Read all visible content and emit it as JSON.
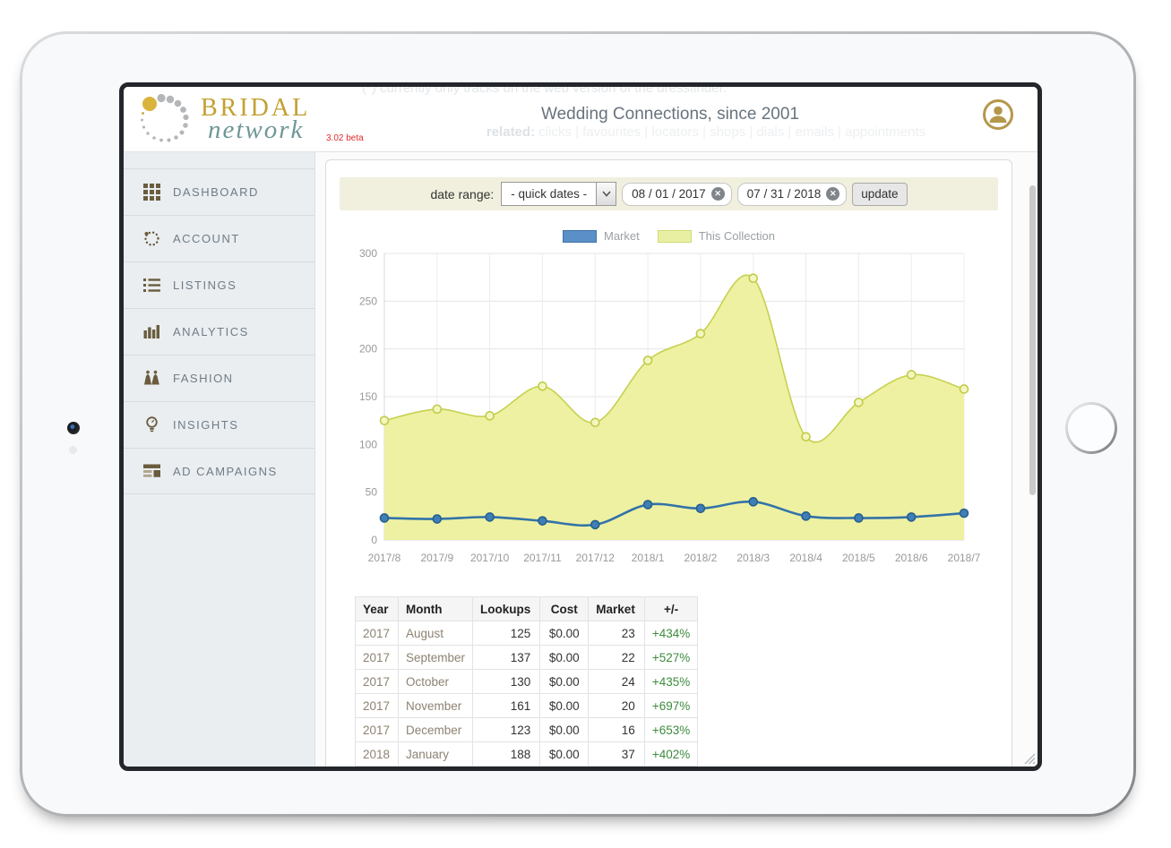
{
  "header": {
    "faint_note": "(*) currently only tracks on the web version of the dressfinder.",
    "logo": {
      "line1": "BRIDAL",
      "line2": "network",
      "version": "3.02 beta"
    },
    "title": "Wedding Connections, since 2001",
    "related": {
      "label": "related:",
      "items": "clicks | favourites | locators | shops | dials | emails | appointments"
    }
  },
  "sidebar": {
    "items": [
      {
        "label": "DASHBOARD",
        "icon": "grid-icon"
      },
      {
        "label": "ACCOUNT",
        "icon": "dotted-circle-icon"
      },
      {
        "label": "LISTINGS",
        "icon": "list-icon"
      },
      {
        "label": "ANALYTICS",
        "icon": "bar-chart-icon"
      },
      {
        "label": "FASHION",
        "icon": "dresses-icon"
      },
      {
        "label": "INSIGHTS",
        "icon": "lightbulb-icon"
      },
      {
        "label": "AD CAMPAIGNS",
        "icon": "ad-blocks-icon"
      }
    ]
  },
  "toolbar": {
    "date_range_label": "date range:",
    "quick_dates_value": "- quick dates -",
    "start_date": "08 / 01 / 2017",
    "end_date": "07 / 31 / 2018",
    "update_label": "update"
  },
  "chart_data": {
    "type": "line",
    "categories": [
      "2017/8",
      "2017/9",
      "2017/10",
      "2017/11",
      "2017/12",
      "2018/1",
      "2018/2",
      "2018/3",
      "2018/4",
      "2018/5",
      "2018/6",
      "2018/7"
    ],
    "series": [
      {
        "name": "Market",
        "type": "line",
        "color": "#3273a8",
        "marker_fill": "#3f7fb5",
        "marker_stroke": "#27608f",
        "values": [
          23,
          22,
          24,
          20,
          16,
          37,
          33,
          40,
          25,
          23,
          24,
          28
        ]
      },
      {
        "name": "This Collection",
        "type": "area",
        "color": "#c5d14f",
        "fill": "#eef1a2",
        "marker_fill": "#f4f6c0",
        "marker_stroke": "#c0cc49",
        "values": [
          125,
          137,
          130,
          161,
          123,
          188,
          216,
          274,
          108,
          144,
          173,
          158
        ]
      }
    ],
    "ylim": [
      0,
      300
    ],
    "ytick_step": 50,
    "grid": true,
    "legend_position": "top-center"
  },
  "table": {
    "columns": [
      "Year",
      "Month",
      "Lookups",
      "Cost",
      "Market",
      "+/-"
    ],
    "rows": [
      [
        "2017",
        "August",
        "125",
        "$0.00",
        "23",
        "+434%"
      ],
      [
        "2017",
        "September",
        "137",
        "$0.00",
        "22",
        "+527%"
      ],
      [
        "2017",
        "October",
        "130",
        "$0.00",
        "24",
        "+435%"
      ],
      [
        "2017",
        "November",
        "161",
        "$0.00",
        "20",
        "+697%"
      ],
      [
        "2017",
        "December",
        "123",
        "$0.00",
        "16",
        "+653%"
      ],
      [
        "2018",
        "January",
        "188",
        "$0.00",
        "37",
        "+402%"
      ]
    ]
  },
  "colors": {
    "brand_gold": "#c3a032",
    "brand_teal": "#6f9797",
    "beta_red": "#e02b2b",
    "sidebar_icon": "#6a5c3e",
    "market_blue": "#3273a8",
    "collection_fill": "#eef1a2",
    "collection_line": "#c5d14f",
    "delta_green": "#3d8b3d",
    "datebar_bg": "#f1f0df"
  }
}
